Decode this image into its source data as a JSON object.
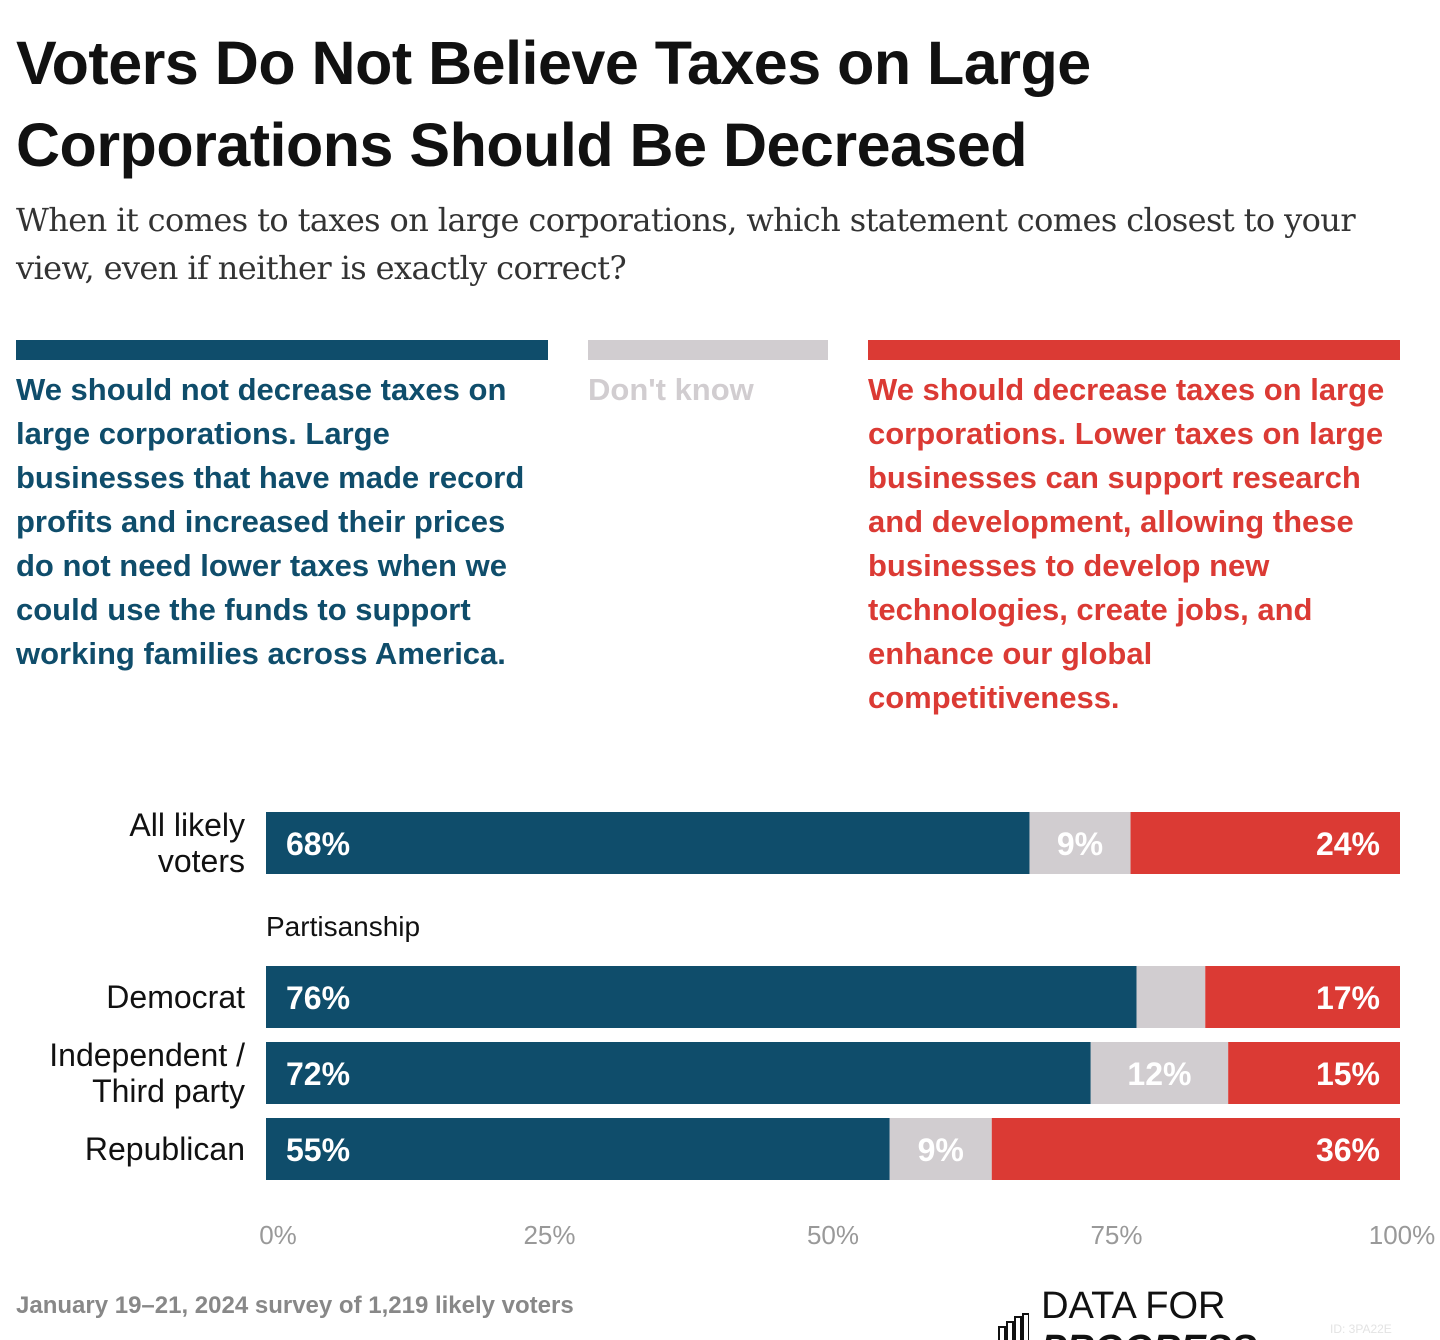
{
  "title": "Voters Do Not Believe Taxes on Large Corporations Should Be Decreased",
  "subtitle": "When it comes to taxes on large corporations, which statement comes closest to your view, even if neither is exactly correct?",
  "colors": {
    "oppose": "#0f4d6b",
    "dont_know": "#d1cdd0",
    "support": "#db3a34"
  },
  "legend": [
    {
      "key": "oppose",
      "label": "We should not decrease taxes on large corporations. Large businesses that have made record profits and increased their prices do not need lower taxes when we could use the funds to support working families across America.",
      "color": "#0f4d6b"
    },
    {
      "key": "dont_know",
      "label": "Don't know",
      "color": "#d1cdd0"
    },
    {
      "key": "support",
      "label": "We should decrease taxes on large corporations. Lower taxes on large businesses can support research and development, allowing these businesses to develop new technologies, create jobs, and enhance our global competitiveness.",
      "color": "#db3a34"
    }
  ],
  "chart_data": {
    "type": "bar",
    "orientation": "horizontal",
    "stacked": true,
    "categories": [
      "All likely voters",
      "Democrat",
      "Independent / Third party",
      "Republican"
    ],
    "group_label": "Partisanship",
    "series": [
      {
        "name": "We should not decrease taxes on large corporations.",
        "values": [
          68,
          76,
          72,
          55
        ],
        "labels": [
          "68%",
          "76%",
          "72%",
          "55%"
        ]
      },
      {
        "name": "Don't know",
        "values": [
          9,
          6,
          12,
          9
        ],
        "labels": [
          "9%",
          "",
          "12%",
          "9%"
        ]
      },
      {
        "name": "We should decrease taxes on large corporations.",
        "values": [
          24,
          17,
          15,
          36
        ],
        "labels": [
          "24%",
          "17%",
          "15%",
          "36%"
        ]
      }
    ],
    "xlim": [
      0,
      100
    ],
    "xticks": [
      "0%",
      "25%",
      "50%",
      "75%",
      "100%"
    ],
    "grid": false
  },
  "footer": {
    "source": "January 19–21, 2024 survey of 1,219 likely voters",
    "logo_light": "DATA FOR",
    "logo_bold": "PROGRESS",
    "chart_id": "ID: 3PA22E"
  }
}
